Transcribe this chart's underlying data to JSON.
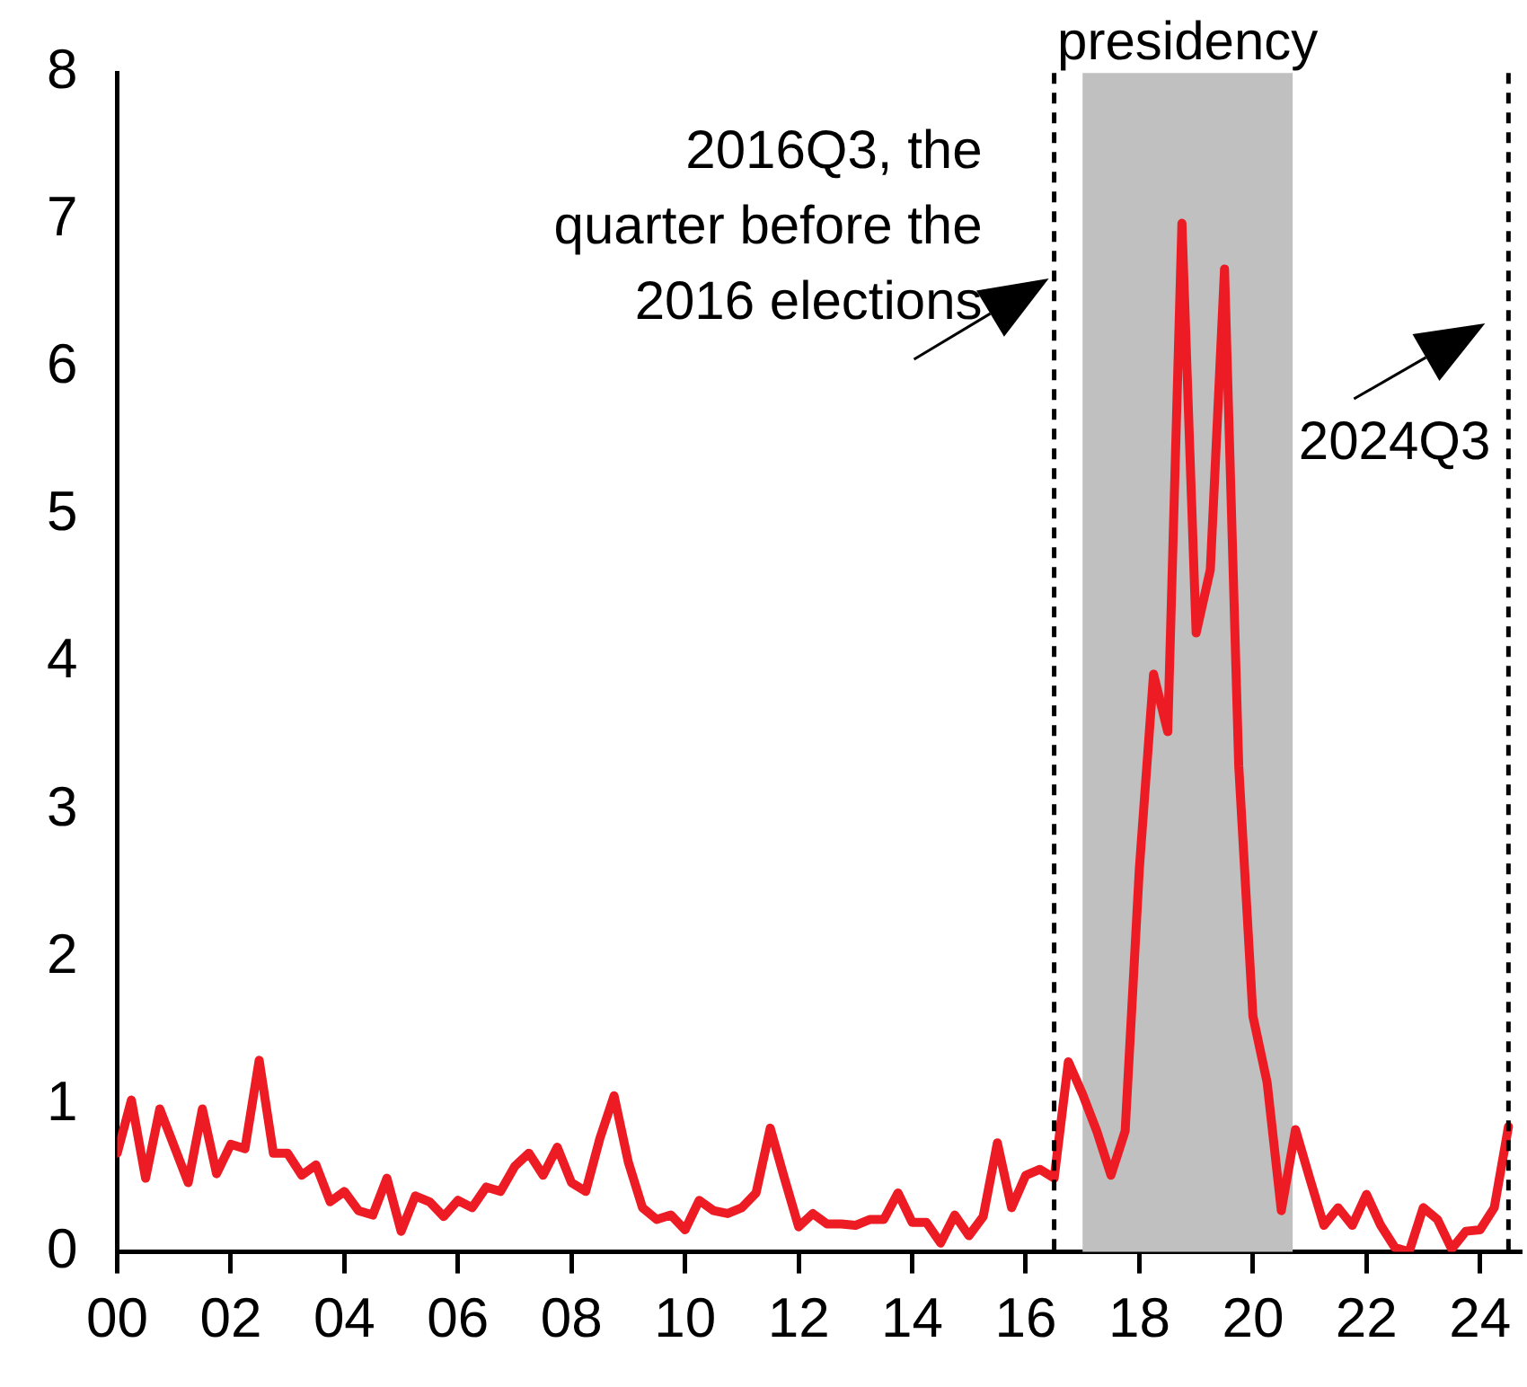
{
  "chart_data": {
    "type": "line",
    "x": [
      2000,
      2000.25,
      2000.5,
      2000.75,
      2001,
      2001.25,
      2001.5,
      2001.75,
      2002,
      2002.25,
      2002.5,
      2002.75,
      2003,
      2003.25,
      2003.5,
      2003.75,
      2004,
      2004.25,
      2004.5,
      2004.75,
      2005,
      2005.25,
      2005.5,
      2005.75,
      2006,
      2006.25,
      2006.5,
      2006.75,
      2007,
      2007.25,
      2007.5,
      2007.75,
      2008,
      2008.25,
      2008.5,
      2008.75,
      2009,
      2009.25,
      2009.5,
      2009.75,
      2010,
      2010.25,
      2010.5,
      2010.75,
      2011,
      2011.25,
      2011.5,
      2011.75,
      2012,
      2012.25,
      2012.5,
      2012.75,
      2013,
      2013.25,
      2013.5,
      2013.75,
      2014,
      2014.25,
      2014.5,
      2014.75,
      2015,
      2015.25,
      2015.5,
      2015.75,
      2016,
      2016.25,
      2016.5,
      2016.75,
      2017,
      2017.25,
      2017.5,
      2017.75,
      2018,
      2018.25,
      2018.5,
      2018.75,
      2019,
      2019.25,
      2019.5,
      2019.75,
      2020,
      2020.25,
      2020.5,
      2020.75,
      2021,
      2021.25,
      2021.5,
      2021.75,
      2022,
      2022.25,
      2022.5,
      2022.75,
      2023,
      2023.25,
      2023.5,
      2023.75,
      2024,
      2024.25,
      2024.5
    ],
    "series": [
      {
        "color": "#ed1c24",
        "values": [
          0.67,
          1.03,
          0.5,
          0.97,
          0.72,
          0.47,
          0.97,
          0.53,
          0.73,
          0.7,
          1.3,
          0.67,
          0.67,
          0.52,
          0.59,
          0.34,
          0.41,
          0.28,
          0.25,
          0.5,
          0.14,
          0.38,
          0.34,
          0.24,
          0.35,
          0.3,
          0.44,
          0.41,
          0.58,
          0.67,
          0.52,
          0.71,
          0.47,
          0.41,
          0.77,
          1.06,
          0.61,
          0.3,
          0.22,
          0.25,
          0.15,
          0.35,
          0.28,
          0.26,
          0.3,
          0.4,
          0.84,
          0.5,
          0.17,
          0.26,
          0.19,
          0.19,
          0.18,
          0.22,
          0.22,
          0.4,
          0.2,
          0.2,
          0.06,
          0.25,
          0.11,
          0.24,
          0.74,
          0.3,
          0.52,
          0.56,
          0.5,
          1.29,
          1.07,
          0.82,
          0.52,
          0.82,
          2.6,
          3.92,
          3.53,
          6.98,
          4.2,
          4.63,
          6.67,
          3.3,
          1.6,
          1.15,
          0.28,
          0.83,
          0.5,
          0.18,
          0.3,
          0.18,
          0.39,
          0.18,
          0.03,
          0,
          0.3,
          0.22,
          0.02,
          0.14,
          0.15,
          0.3,
          0.85
        ]
      }
    ],
    "xlim": [
      2000,
      2024.7
    ],
    "xticks": [
      {
        "value": 2000,
        "label": "00"
      },
      {
        "value": 2002,
        "label": "02"
      },
      {
        "value": 2004,
        "label": "04"
      },
      {
        "value": 2006,
        "label": "06"
      },
      {
        "value": 2008,
        "label": "08"
      },
      {
        "value": 2010,
        "label": "10"
      },
      {
        "value": 2012,
        "label": "12"
      },
      {
        "value": 2014,
        "label": "14"
      },
      {
        "value": 2016,
        "label": "16"
      },
      {
        "value": 2018,
        "label": "18"
      },
      {
        "value": 2020,
        "label": "20"
      },
      {
        "value": 2022,
        "label": "22"
      },
      {
        "value": 2024,
        "label": "24"
      }
    ],
    "ylim": [
      0,
      8
    ],
    "yticks": [
      0,
      1,
      2,
      3,
      4,
      5,
      6,
      7,
      8
    ],
    "ref_lines": [
      {
        "axis": "x",
        "value": 2016.5,
        "label": "2016Q3, the quarter before the 2016 elections",
        "line_style": "dashed",
        "color": "#000000"
      },
      {
        "axis": "x",
        "value": 2024.5,
        "label": "2024Q3",
        "line_style": "dashed",
        "color": "#000000"
      }
    ],
    "bands": [
      {
        "axis": "x",
        "from": 2017,
        "to": 2020.7,
        "label": "presidency",
        "color": "#c0c0c0"
      }
    ],
    "grid": false,
    "legend": false,
    "marker": "none",
    "line_style": "solid"
  }
}
